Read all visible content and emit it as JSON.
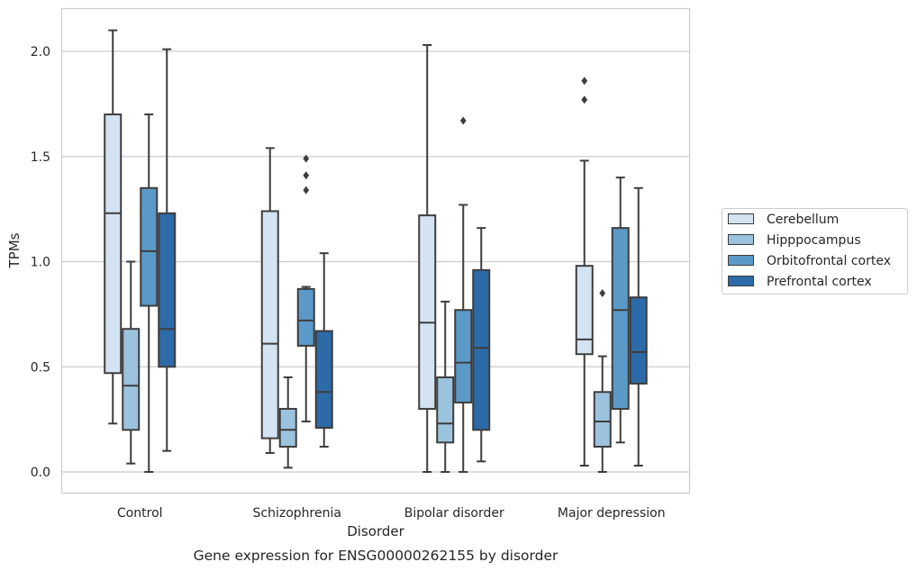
{
  "caption": "Gene expression for ENSG00000262155 by disorder",
  "chart_data": {
    "type": "box",
    "xlabel": "Disorder",
    "ylabel": "TPMs",
    "ylim": [
      -0.1,
      2.22
    ],
    "yticks": [
      0.0,
      0.5,
      1.0,
      1.5,
      2.0
    ],
    "ytick_labels": [
      "0.0",
      "0.5",
      "1.0",
      "1.5",
      "2.0"
    ],
    "grid": "horizontal",
    "legend_position": "right",
    "categories": [
      "Control",
      "Schizophrenia",
      "Bipolar disorder",
      "Major depression"
    ],
    "series": [
      {
        "name": "Cerebellum",
        "color": "#d4e3f1",
        "boxes": [
          {
            "whisker_low": 0.23,
            "q1": 0.47,
            "median": 1.23,
            "q3": 1.7,
            "whisker_high": 2.1,
            "outliers": []
          },
          {
            "whisker_low": 0.09,
            "q1": 0.16,
            "median": 0.61,
            "q3": 1.24,
            "whisker_high": 1.54,
            "outliers": []
          },
          {
            "whisker_low": 0.0,
            "q1": 0.3,
            "median": 0.71,
            "q3": 1.22,
            "whisker_high": 2.03,
            "outliers": []
          },
          {
            "whisker_low": 0.03,
            "q1": 0.56,
            "median": 0.63,
            "q3": 0.98,
            "whisker_high": 1.48,
            "outliers": [
              1.77,
              1.86
            ]
          }
        ]
      },
      {
        "name": "Hipppocampus",
        "color": "#9cc3dd",
        "boxes": [
          {
            "whisker_low": 0.04,
            "q1": 0.2,
            "median": 0.41,
            "q3": 0.68,
            "whisker_high": 1.0,
            "outliers": []
          },
          {
            "whisker_low": 0.02,
            "q1": 0.12,
            "median": 0.2,
            "q3": 0.3,
            "whisker_high": 0.45,
            "outliers": []
          },
          {
            "whisker_low": 0.0,
            "q1": 0.14,
            "median": 0.23,
            "q3": 0.45,
            "whisker_high": 0.81,
            "outliers": []
          },
          {
            "whisker_low": 0.0,
            "q1": 0.12,
            "median": 0.24,
            "q3": 0.38,
            "whisker_high": 0.55,
            "outliers": [
              0.85
            ]
          }
        ]
      },
      {
        "name": "Orbitofrontal cortex",
        "color": "#5b9ac8",
        "boxes": [
          {
            "whisker_low": 0.0,
            "q1": 0.79,
            "median": 1.05,
            "q3": 1.35,
            "whisker_high": 1.7,
            "outliers": []
          },
          {
            "whisker_low": 0.24,
            "q1": 0.6,
            "median": 0.72,
            "q3": 0.87,
            "whisker_high": 0.88,
            "outliers": [
              1.34,
              1.41,
              1.49
            ]
          },
          {
            "whisker_low": 0.0,
            "q1": 0.33,
            "median": 0.52,
            "q3": 0.77,
            "whisker_high": 1.27,
            "outliers": [
              1.67
            ]
          },
          {
            "whisker_low": 0.14,
            "q1": 0.3,
            "median": 0.77,
            "q3": 1.16,
            "whisker_high": 1.4,
            "outliers": []
          }
        ]
      },
      {
        "name": "Prefrontal cortex",
        "color": "#2c6aa8",
        "boxes": [
          {
            "whisker_low": 0.1,
            "q1": 0.5,
            "median": 0.68,
            "q3": 1.23,
            "whisker_high": 2.01,
            "outliers": []
          },
          {
            "whisker_low": 0.12,
            "q1": 0.21,
            "median": 0.38,
            "q3": 0.67,
            "whisker_high": 1.04,
            "outliers": []
          },
          {
            "whisker_low": 0.05,
            "q1": 0.2,
            "median": 0.59,
            "q3": 0.96,
            "whisker_high": 1.16,
            "outliers": []
          },
          {
            "whisker_low": 0.03,
            "q1": 0.42,
            "median": 0.57,
            "q3": 0.83,
            "whisker_high": 1.35,
            "outliers": []
          }
        ]
      }
    ]
  }
}
